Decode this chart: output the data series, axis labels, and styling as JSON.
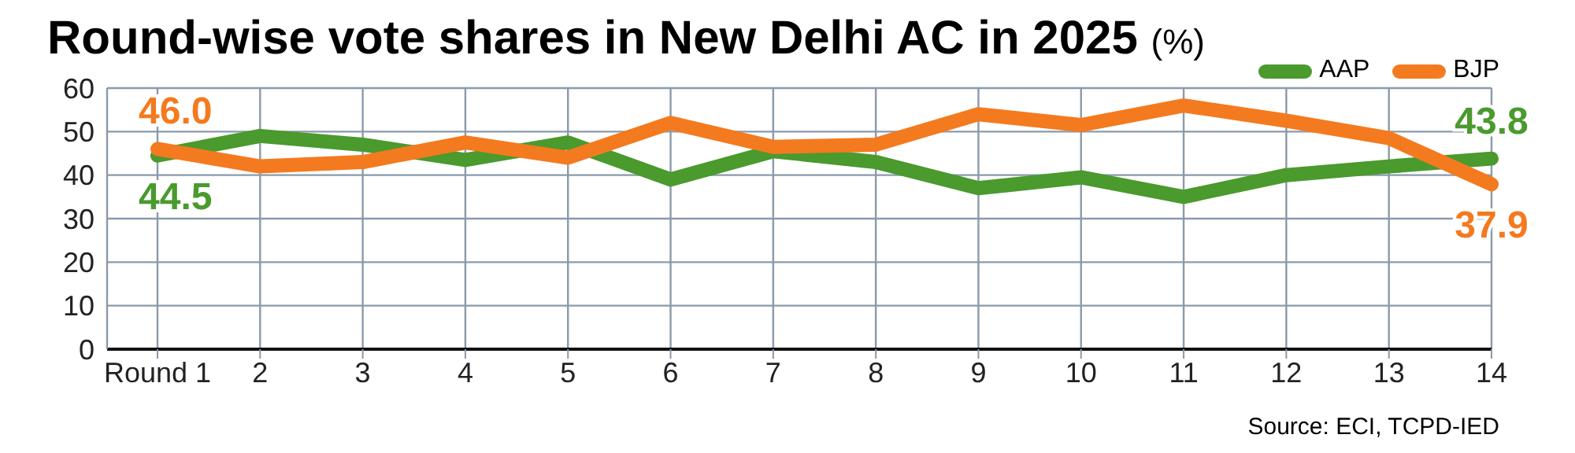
{
  "chart_data": {
    "type": "line",
    "title": "Round-wise vote shares in New Delhi AC in 2025",
    "subtitle": "(%)",
    "categories": [
      "Round 1",
      "2",
      "3",
      "4",
      "5",
      "6",
      "7",
      "8",
      "9",
      "10",
      "11",
      "12",
      "13",
      "14"
    ],
    "series": [
      {
        "name": "AAP",
        "color": "#4a9a2e",
        "values": [
          44.5,
          49,
          47,
          43.5,
          47.5,
          39,
          45.5,
          43,
          37,
          39.5,
          35,
          40,
          42,
          43.8
        ],
        "value_labels": [
          "44.5",
          null,
          null,
          null,
          null,
          null,
          null,
          null,
          null,
          null,
          null,
          null,
          null,
          "43.8"
        ]
      },
      {
        "name": "BJP",
        "color": "#f47a1f",
        "values": [
          46.0,
          42,
          43,
          47.5,
          44,
          52,
          46.5,
          47,
          54,
          51.5,
          56,
          52.5,
          48.5,
          37.9
        ],
        "value_labels": [
          "46.0",
          null,
          null,
          null,
          null,
          null,
          null,
          null,
          null,
          null,
          null,
          null,
          null,
          "37.9"
        ]
      }
    ],
    "ylim": [
      0,
      60
    ],
    "yticks": [
      0,
      10,
      20,
      30,
      40,
      50,
      60
    ],
    "grid": true,
    "legend": "top right",
    "marker": "none",
    "line_style": "solid",
    "annotations": [
      "Source: ECI, TCPD-IED"
    ]
  }
}
